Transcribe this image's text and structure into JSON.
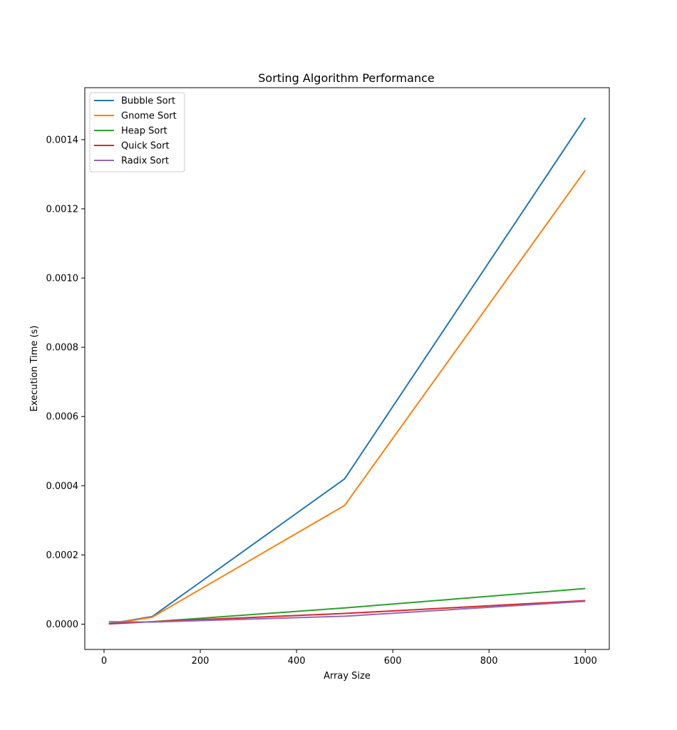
{
  "chart_data": {
    "type": "line",
    "title": "Sorting Algorithm Performance",
    "xlabel": "Array Size",
    "ylabel": "Execution Time (s)",
    "x": [
      10,
      100,
      500,
      1000
    ],
    "xlim": [
      -40,
      1050
    ],
    "ylim": [
      -7.3e-05,
      0.00155
    ],
    "xticks": [
      0,
      200,
      400,
      600,
      800,
      1000
    ],
    "xtick_labels": [
      "0",
      "200",
      "400",
      "600",
      "800",
      "1000"
    ],
    "yticks": [
      0.0,
      0.0002,
      0.0004,
      0.0006,
      0.0008,
      0.001,
      0.0012,
      0.0014
    ],
    "ytick_labels": [
      "0.0000",
      "0.0002",
      "0.0004",
      "0.0006",
      "0.0008",
      "0.0010",
      "0.0012",
      "0.0014"
    ],
    "grid": false,
    "legend_position": "top-left",
    "series": [
      {
        "name": "Bubble Sort",
        "color": "#1f77b4",
        "values": [
          1e-06,
          2.2e-05,
          0.00042,
          0.001463
        ]
      },
      {
        "name": "Gnome Sort",
        "color": "#ff7f0e",
        "values": [
          5e-07,
          2e-05,
          0.000343,
          0.001311
        ]
      },
      {
        "name": "Heap Sort",
        "color": "#2ca02c",
        "values": [
          2e-06,
          7e-06,
          4.7e-05,
          0.000103
        ]
      },
      {
        "name": "Quick Sort",
        "color": "#d62728",
        "values": [
          1e-06,
          7e-06,
          3.1e-05,
          6.8e-05
        ]
      },
      {
        "name": "Radix Sort",
        "color": "#9467bd",
        "values": [
          7e-06,
          6e-06,
          2.3e-05,
          6.6e-05
        ]
      }
    ]
  }
}
